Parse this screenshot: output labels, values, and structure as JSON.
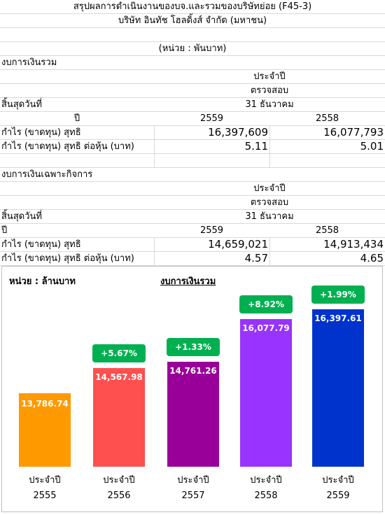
{
  "header": {
    "title": "สรุปผลการดำเนินงานของบจ.และรวมของบริษัทย่อย (F45-3)",
    "company": "บริษัท อินทัช โฮลดิ้งส์ จำกัด (มหาชน)",
    "unit": "(หน่วย : พันบาท)"
  },
  "consolidated": {
    "section_label": "งบการเงินรวม",
    "period_type": "ประจำปี",
    "audit_status": "ตรวจสอบ",
    "period_end_label": "สิ้นสุดวันที่",
    "period_end_value": "31 ธันวาคม",
    "year_label": "ปี",
    "years": [
      "2559",
      "2558"
    ],
    "net_profit_label": "กำไร (ขาดทุน) สุทธิ",
    "net_profit": [
      "16,397,609",
      "16,077,793"
    ],
    "eps_label": "กำไร (ขาดทุน) สุทธิ ต่อหุ้น (บาท)",
    "eps": [
      "5.11",
      "5.01"
    ]
  },
  "separate": {
    "section_label": "งบการเงินเฉพาะกิจการ",
    "period_type": "ประจำปี",
    "audit_status": "ตรวจสอบ",
    "period_end_label": "สิ้นสุดวันที่",
    "period_end_value": "31 ธันวาคม",
    "year_label": "ปี",
    "years": [
      "2559",
      "2558"
    ],
    "net_profit_label": "กำไร (ขาดทุน) สุทธิ",
    "net_profit": [
      "14,659,021",
      "14,913,434"
    ],
    "eps_label": "กำไร (ขาดทุน) สุทธิ ต่อหุ้น (บาท)",
    "eps": [
      "4.57",
      "4.65"
    ]
  },
  "chart_data": {
    "type": "bar",
    "title": "งบการเงินรวม",
    "unit_label": "หน่วย : ล้านบาท",
    "categories": [
      "ประจำปี 2555",
      "ประจำปี 2556",
      "ประจำปี 2557",
      "ประจำปี 2558",
      "ประจำปี 2559"
    ],
    "category_line1": [
      "ประจำปี",
      "ประจำปี",
      "ประจำปี",
      "ประจำปี",
      "ประจำปี"
    ],
    "category_line2": [
      "2555",
      "2556",
      "2557",
      "2558",
      "2559"
    ],
    "values": [
      13786.74,
      14567.98,
      14761.26,
      16077.79,
      16397.61
    ],
    "value_labels": [
      "13,786.74",
      "14,567.98",
      "14,761.26",
      "16,077.79",
      "16,397.61"
    ],
    "growth_labels": [
      "",
      "+5.67%",
      "+1.33%",
      "+8.92%",
      "+1.99%"
    ],
    "bar_colors": [
      "#ff9900",
      "#ff5050",
      "#990099",
      "#9933ff",
      "#0033cc"
    ],
    "badge_color": "#00b050",
    "ylim": [
      11500,
      16500
    ],
    "grid": false
  }
}
